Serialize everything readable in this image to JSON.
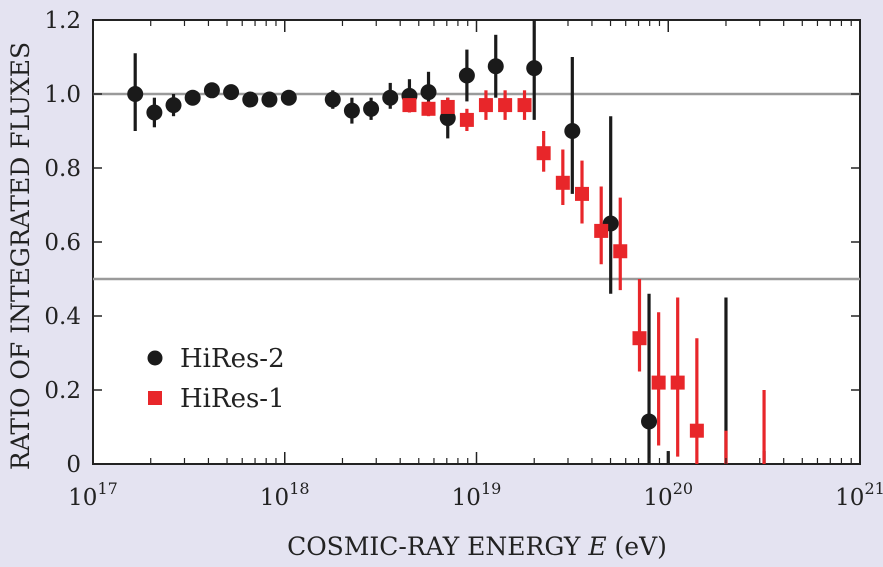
{
  "chart_data": {
    "type": "scatter",
    "xlabel_main": "COSMIC-RAY ENERGY ",
    "xlabel_var": "E",
    "xlabel_unit": " (eV)",
    "ylabel": "RATIO OF INTEGRATED FLUXES",
    "x_scale": "log",
    "xlim": [
      1e+17,
      1e+21
    ],
    "ylim": [
      0,
      1.2
    ],
    "x_ticks": [
      {
        "exp": 17,
        "base": "10",
        "sup": "17"
      },
      {
        "exp": 18,
        "base": "10",
        "sup": "18"
      },
      {
        "exp": 19,
        "base": "10",
        "sup": "19"
      },
      {
        "exp": 20,
        "base": "10",
        "sup": "20"
      },
      {
        "exp": 21,
        "base": "10",
        "sup": "21"
      }
    ],
    "y_ticks": [
      {
        "value": 0,
        "label": "0"
      },
      {
        "value": 0.2,
        "label": "0.2"
      },
      {
        "value": 0.4,
        "label": "0.4"
      },
      {
        "value": 0.6,
        "label": "0.6"
      },
      {
        "value": 0.8,
        "label": "0.8"
      },
      {
        "value": 1.0,
        "label": "1.0"
      },
      {
        "value": 1.2,
        "label": "1.2"
      }
    ],
    "reference_lines": [
      1.0,
      0.5
    ],
    "legend_position": "lower-left",
    "colors": {
      "hires2": "#1a1a1a",
      "hires1": "#e8262a",
      "reference": "#9a9a9a",
      "background": "#e4e3f1",
      "plot_bg": "#ffffff"
    },
    "series": [
      {
        "name": "HiRes-2",
        "marker": "circle",
        "color": "#1a1a1a",
        "points": [
          {
            "x": 1.66e+17,
            "y": 1.0,
            "ylo": 0.9,
            "yhi": 1.11
          },
          {
            "x": 2.09e+17,
            "y": 0.95,
            "ylo": 0.91,
            "yhi": 0.99
          },
          {
            "x": 2.63e+17,
            "y": 0.97,
            "ylo": 0.94,
            "yhi": 1.0
          },
          {
            "x": 3.31e+17,
            "y": 0.99,
            "ylo": 0.97,
            "yhi": 1.01
          },
          {
            "x": 4.17e+17,
            "y": 1.01,
            "ylo": 0.99,
            "yhi": 1.02
          },
          {
            "x": 5.25e+17,
            "y": 1.005,
            "ylo": 0.99,
            "yhi": 1.02
          },
          {
            "x": 6.61e+17,
            "y": 0.985,
            "ylo": 0.97,
            "yhi": 1.0
          },
          {
            "x": 8.32e+17,
            "y": 0.985,
            "ylo": 0.97,
            "yhi": 1.0
          },
          {
            "x": 1.05e+18,
            "y": 0.99,
            "ylo": 0.98,
            "yhi": 1.0
          },
          {
            "x": 1.78e+18,
            "y": 0.985,
            "ylo": 0.96,
            "yhi": 1.01
          },
          {
            "x": 2.24e+18,
            "y": 0.955,
            "ylo": 0.92,
            "yhi": 0.99
          },
          {
            "x": 2.82e+18,
            "y": 0.96,
            "ylo": 0.93,
            "yhi": 0.99
          },
          {
            "x": 3.55e+18,
            "y": 0.99,
            "ylo": 0.96,
            "yhi": 1.03
          },
          {
            "x": 4.47e+18,
            "y": 0.995,
            "ylo": 0.96,
            "yhi": 1.04
          },
          {
            "x": 5.62e+18,
            "y": 1.005,
            "ylo": 0.96,
            "yhi": 1.06
          },
          {
            "x": 7.08e+18,
            "y": 0.935,
            "ylo": 0.88,
            "yhi": 0.99
          },
          {
            "x": 8.91e+18,
            "y": 1.05,
            "ylo": 0.98,
            "yhi": 1.12
          },
          {
            "x": 1.26e+19,
            "y": 1.075,
            "ylo": 0.99,
            "yhi": 1.16
          },
          {
            "x": 2e+19,
            "y": 1.07,
            "ylo": 0.93,
            "yhi": 1.2
          },
          {
            "x": 3.16e+19,
            "y": 0.9,
            "ylo": 0.73,
            "yhi": 1.1
          },
          {
            "x": 5.01e+19,
            "y": 0.65,
            "ylo": 0.46,
            "yhi": 0.94
          },
          {
            "x": 7.94e+19,
            "y": 0.115,
            "ylo": 0.0,
            "yhi": 0.46
          },
          {
            "x": 1e+20,
            "y": null,
            "ylo": 0.0,
            "yhi": 0.035
          },
          {
            "x": 2e+20,
            "y": null,
            "ylo": 0.0,
            "yhi": 0.45
          },
          {
            "x": 3.16e+20,
            "y": null,
            "ylo": 0.0,
            "yhi": 0.035
          }
        ]
      },
      {
        "name": "HiRes-1",
        "marker": "square",
        "color": "#e8262a",
        "points": [
          {
            "x": 4.47e+18,
            "y": 0.97,
            "ylo": 0.95,
            "yhi": 0.99
          },
          {
            "x": 5.62e+18,
            "y": 0.96,
            "ylo": 0.94,
            "yhi": 0.98
          },
          {
            "x": 7.08e+18,
            "y": 0.965,
            "ylo": 0.94,
            "yhi": 0.99
          },
          {
            "x": 8.91e+18,
            "y": 0.93,
            "ylo": 0.9,
            "yhi": 0.96
          },
          {
            "x": 1.12e+19,
            "y": 0.97,
            "ylo": 0.93,
            "yhi": 1.01
          },
          {
            "x": 1.41e+19,
            "y": 0.97,
            "ylo": 0.93,
            "yhi": 1.01
          },
          {
            "x": 1.78e+19,
            "y": 0.97,
            "ylo": 0.93,
            "yhi": 1.01
          },
          {
            "x": 2.24e+19,
            "y": 0.84,
            "ylo": 0.79,
            "yhi": 0.9
          },
          {
            "x": 2.82e+19,
            "y": 0.76,
            "ylo": 0.7,
            "yhi": 0.85
          },
          {
            "x": 3.55e+19,
            "y": 0.73,
            "ylo": 0.65,
            "yhi": 0.82
          },
          {
            "x": 4.47e+19,
            "y": 0.63,
            "ylo": 0.54,
            "yhi": 0.75
          },
          {
            "x": 5.62e+19,
            "y": 0.575,
            "ylo": 0.47,
            "yhi": 0.72
          },
          {
            "x": 7.08e+19,
            "y": 0.34,
            "ylo": 0.25,
            "yhi": 0.5
          },
          {
            "x": 8.91e+19,
            "y": 0.22,
            "ylo": 0.05,
            "yhi": 0.41
          },
          {
            "x": 1.12e+20,
            "y": 0.22,
            "ylo": 0.02,
            "yhi": 0.45
          },
          {
            "x": 1.41e+20,
            "y": 0.09,
            "ylo": 0.0,
            "yhi": 0.34
          },
          {
            "x": 2e+20,
            "y": null,
            "ylo": 0.0,
            "yhi": 0.09
          },
          {
            "x": 3.16e+20,
            "y": null,
            "ylo": 0.0,
            "yhi": 0.2
          }
        ]
      }
    ]
  }
}
